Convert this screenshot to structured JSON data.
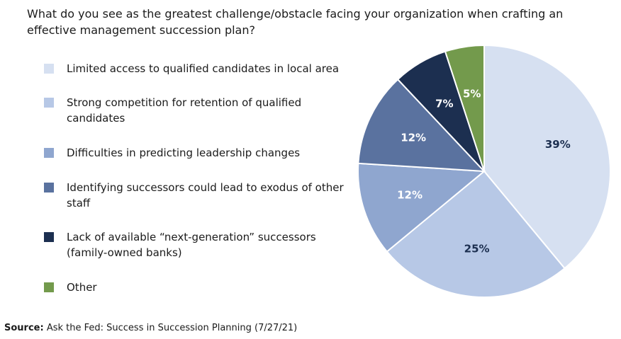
{
  "chart_data": {
    "type": "pie",
    "title": "What do you see as the greatest challenge/obstacle facing your organization when crafting an effective management succession plan?",
    "categories": [
      "Limited access to qualified candidates in local area",
      "Strong competition for retention of qualified candidates",
      "Difficulties in predicting leadership changes",
      "Identifying successors could lead to exodus of other staff",
      "Lack of available “next-generation” successors (family-owned banks)",
      "Other"
    ],
    "values": [
      39,
      25,
      12,
      12,
      7,
      5
    ],
    "value_labels": [
      "39%",
      "25%",
      "12%",
      "12%",
      "7%",
      "5%"
    ],
    "colors": [
      "#d6e0f1",
      "#b7c8e6",
      "#8fa6cf",
      "#5a729f",
      "#1c2f50",
      "#739a4c"
    ],
    "source_label": "Source:",
    "source": "Ask the Fed: Success in Succession Planning (7/27/21)"
  }
}
